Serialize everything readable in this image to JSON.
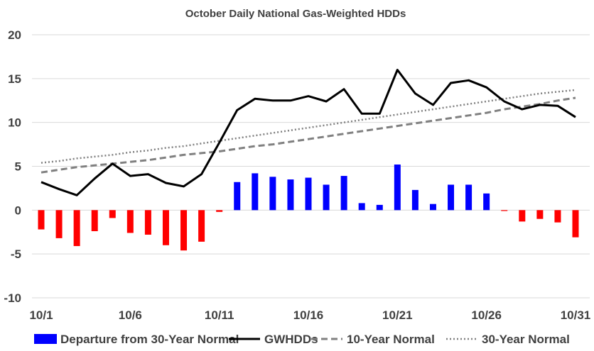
{
  "chart_data": {
    "type": "bar",
    "title": "October Daily National Gas-Weighted HDDs",
    "xlabel": "",
    "ylabel": "",
    "ylim": [
      -10,
      20
    ],
    "yticks": [
      -10,
      -5,
      0,
      5,
      10,
      15,
      20
    ],
    "grid": true,
    "legend_position": "bottom",
    "categories": [
      "10/1",
      "10/2",
      "10/3",
      "10/4",
      "10/5",
      "10/6",
      "10/7",
      "10/8",
      "10/9",
      "10/10",
      "10/11",
      "10/12",
      "10/13",
      "10/14",
      "10/15",
      "10/16",
      "10/17",
      "10/18",
      "10/19",
      "10/20",
      "10/21",
      "10/22",
      "10/23",
      "10/24",
      "10/25",
      "10/26",
      "10/27",
      "10/28",
      "10/29",
      "10/30",
      "10/31"
    ],
    "xtick_labels": [
      "10/1",
      "10/6",
      "10/11",
      "10/16",
      "10/21",
      "10/26",
      "10/31"
    ],
    "xtick_indices": [
      0,
      5,
      10,
      15,
      20,
      25,
      30
    ],
    "series": [
      {
        "name": "Departure from 30-Year Normal",
        "type": "bar",
        "positive_color": "#0000FF",
        "negative_color": "#FF0000",
        "values": [
          -2.2,
          -3.2,
          -4.1,
          -2.4,
          -0.9,
          -2.6,
          -2.8,
          -4.0,
          -4.6,
          -3.6,
          -0.2,
          3.2,
          4.2,
          3.8,
          3.5,
          3.7,
          2.9,
          3.9,
          0.8,
          0.6,
          5.2,
          2.3,
          0.7,
          2.9,
          2.9,
          1.9,
          -0.1,
          -1.3,
          -1.0,
          -1.4,
          -3.1
        ]
      },
      {
        "name": "GWHDDs",
        "type": "line",
        "style": "solid",
        "color": "#000000",
        "values": [
          3.2,
          2.4,
          1.7,
          3.6,
          5.3,
          3.9,
          4.1,
          3.1,
          2.7,
          4.1,
          7.7,
          11.4,
          12.7,
          12.5,
          12.5,
          13.0,
          12.4,
          13.8,
          11.0,
          11.0,
          16.0,
          13.3,
          12.0,
          14.5,
          14.8,
          14.0,
          12.4,
          11.5,
          12.0,
          11.9,
          10.6
        ]
      },
      {
        "name": "10-Year Normal",
        "type": "line",
        "style": "dashed",
        "color": "#808080",
        "values": [
          4.3,
          4.6,
          4.9,
          5.1,
          5.3,
          5.5,
          5.7,
          6.0,
          6.3,
          6.5,
          6.7,
          7.0,
          7.3,
          7.5,
          7.8,
          8.1,
          8.4,
          8.7,
          9.0,
          9.3,
          9.6,
          9.9,
          10.2,
          10.5,
          10.8,
          11.1,
          11.5,
          11.8,
          12.1,
          12.5,
          12.8
        ]
      },
      {
        "name": "30-Year Normal",
        "type": "line",
        "style": "dotted",
        "color": "#808080",
        "values": [
          5.4,
          5.6,
          5.9,
          6.1,
          6.3,
          6.6,
          6.8,
          7.1,
          7.3,
          7.6,
          7.9,
          8.2,
          8.5,
          8.8,
          9.1,
          9.4,
          9.7,
          10.0,
          10.3,
          10.6,
          10.9,
          11.2,
          11.5,
          11.8,
          12.1,
          12.4,
          12.7,
          13.0,
          13.3,
          13.5,
          13.7
        ]
      }
    ]
  }
}
